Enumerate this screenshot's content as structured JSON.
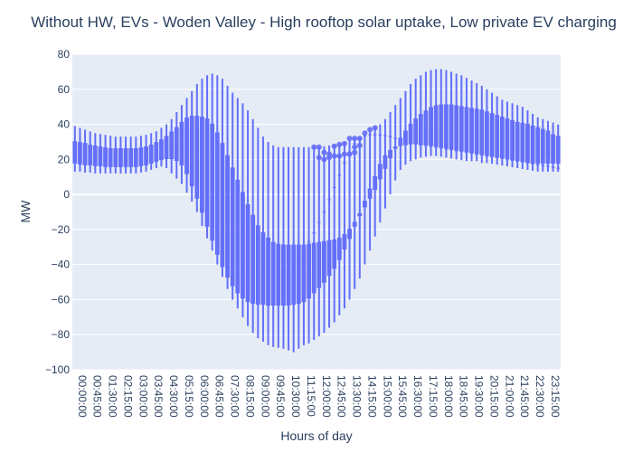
{
  "chart_data": {
    "type": "box",
    "title": "Without HW, EVs - Woden Valley - High rooftop solar uptake, Low private EV charging",
    "xlabel": "Hours of day",
    "ylabel": "MW",
    "ylim": [
      -100,
      80
    ],
    "yticks": [
      80,
      60,
      40,
      20,
      0,
      -20,
      -40,
      -60,
      -80,
      -100
    ],
    "ytick_labels": [
      "80",
      "60",
      "40",
      "20",
      "0",
      "−20",
      "−40",
      "−60",
      "−80",
      "−100"
    ],
    "xtick_labels": [
      "00:00:00",
      "00:45:00",
      "01:30:00",
      "02:15:00",
      "03:00:00",
      "03:45:00",
      "04:30:00",
      "05:15:00",
      "06:00:00",
      "06:45:00",
      "07:30:00",
      "08:15:00",
      "09:00:00",
      "09:45:00",
      "10:30:00",
      "11:15:00",
      "12:00:00",
      "12:45:00",
      "13:30:00",
      "14:15:00",
      "15:00:00",
      "15:45:00",
      "16:30:00",
      "17:15:00",
      "18:00:00",
      "18:45:00",
      "19:30:00",
      "20:15:00",
      "21:00:00",
      "21:45:00",
      "22:30:00",
      "23:15:00"
    ],
    "interval_minutes": 15,
    "color": "#636efa",
    "plot_background": "#e5ecf6",
    "grid": true,
    "series": [
      {
        "x_start": "00:00:00",
        "x_step_minutes": 15,
        "min": [
          13,
          13,
          12.5,
          12.5,
          12,
          12,
          12,
          12,
          12,
          12,
          12,
          12,
          12,
          12.5,
          13,
          14,
          15,
          16,
          15,
          12,
          9,
          6,
          1,
          -4,
          -10,
          -18,
          -25,
          -32,
          -40,
          -47,
          -54,
          -60,
          -65,
          -70,
          -75,
          -79,
          -82,
          -84,
          -86,
          -87,
          -87.5,
          -88,
          -89,
          -90,
          -88,
          -86,
          -85,
          -83,
          -81,
          -79,
          -76,
          -73,
          -69,
          -65,
          -60,
          -54,
          -48,
          -40,
          -32,
          -24,
          -16,
          -8,
          0,
          8,
          14,
          17,
          19,
          20,
          21,
          21.5,
          22,
          22,
          21.5,
          21,
          20.5,
          20,
          19.5,
          19,
          19,
          19,
          18,
          18,
          17.5,
          17,
          16.5,
          16,
          15.5,
          15,
          14.5,
          14,
          13.5,
          13,
          13,
          13,
          13,
          13
        ],
        "q1": [
          18,
          17.5,
          17,
          17,
          16.5,
          16.5,
          16,
          16,
          16,
          16,
          16,
          16,
          16,
          16.5,
          17,
          18,
          19,
          20,
          20.5,
          20.5,
          19.5,
          17,
          12,
          5,
          -2,
          -10,
          -18,
          -26,
          -34,
          -41,
          -47,
          -52,
          -56,
          -59,
          -61,
          -62,
          -62.5,
          -62.5,
          -63,
          -63,
          -63,
          -63,
          -63,
          -62.5,
          -62,
          -61,
          -59,
          -56,
          -53,
          -50,
          -46,
          -42,
          -37,
          -31,
          -25,
          -18,
          -11,
          -4,
          3,
          10,
          17,
          22,
          25,
          27,
          28,
          28.5,
          29,
          29,
          28.5,
          28.5,
          28,
          27.5,
          27,
          26.5,
          26,
          25.5,
          25,
          24.5,
          24,
          23.5,
          23,
          22.5,
          22,
          21.5,
          21,
          20.5,
          20,
          19.5,
          19,
          18.5,
          18,
          18,
          18,
          18,
          18,
          18
        ],
        "median": [
          22.5,
          22,
          21.5,
          21,
          20.5,
          20.5,
          20,
          20,
          20,
          20,
          20,
          20,
          20,
          20.5,
          21,
          22,
          23,
          24.5,
          26,
          27,
          27.5,
          26,
          23,
          17,
          10,
          3,
          -5,
          -13,
          -20,
          -27,
          -33,
          -38,
          -42,
          -44.5,
          -46,
          -46.5,
          -47,
          -47,
          -46.5,
          -46,
          -45,
          -44,
          -42,
          -39,
          -36,
          -32,
          -27,
          -22,
          -16,
          -10,
          -3,
          4,
          11,
          18,
          24,
          29,
          32,
          33.5,
          34,
          34,
          34,
          33.5,
          33,
          32,
          31,
          30,
          29.5,
          29,
          28.5,
          28,
          27.5,
          27,
          26.5,
          26,
          25.5,
          25,
          24.5,
          24,
          23.5,
          23,
          22.5,
          22,
          21.5,
          21,
          20.5,
          20,
          19.5,
          19,
          18.5,
          18,
          17.5,
          17,
          16.5,
          16,
          15.5,
          15
        ],
        "q3": [
          30,
          29.5,
          29,
          28,
          27.5,
          27,
          26.5,
          26,
          26,
          26,
          26,
          26,
          26,
          26.5,
          27,
          28,
          29.5,
          31,
          33,
          35.5,
          38,
          41,
          43.5,
          44.5,
          44.5,
          44,
          43,
          40,
          35,
          29,
          22,
          15,
          8,
          1,
          -6,
          -12,
          -18,
          -22,
          -25,
          -27.5,
          -28.5,
          -29,
          -29,
          -29,
          -29,
          -29,
          -28.5,
          -28,
          -27.5,
          -27,
          -26.5,
          -26,
          -25,
          -23,
          -20,
          -16,
          -12,
          -7,
          -2,
          3,
          9,
          15,
          21,
          27,
          32,
          36,
          40,
          43,
          45.5,
          47.5,
          49.5,
          50.5,
          51,
          51,
          51,
          50.5,
          50,
          49.5,
          49,
          48.5,
          48,
          47,
          46,
          45,
          44,
          43,
          42,
          41,
          40.5,
          40,
          39,
          38,
          37,
          36,
          34,
          33
        ],
        "max": [
          39,
          38,
          37,
          36,
          35,
          34.5,
          34,
          33.5,
          33,
          33,
          33,
          33,
          33,
          33.5,
          34,
          35,
          36,
          38,
          40,
          43,
          47,
          51,
          55,
          59,
          63,
          66,
          68,
          69,
          68,
          66,
          62,
          58,
          55,
          52,
          48,
          43,
          38,
          33,
          30,
          28,
          27,
          27,
          27,
          27,
          27,
          27,
          27,
          27,
          27,
          27.5,
          28,
          28.5,
          29,
          30,
          31,
          32,
          33,
          34,
          36,
          38,
          40,
          43,
          47,
          51,
          55,
          59,
          63,
          66,
          68,
          70,
          71,
          71.5,
          71.5,
          71,
          70,
          69,
          68,
          66.5,
          65,
          63.5,
          62,
          60,
          58,
          56,
          54,
          53,
          52,
          51,
          50,
          48,
          46,
          44,
          43,
          42,
          41,
          40
        ],
        "outliers": [
          {
            "x": "11:45:00",
            "y": 27
          },
          {
            "x": "12:00:00",
            "y": 27
          },
          {
            "x": "12:00:00",
            "y": 21
          },
          {
            "x": "12:15:00",
            "y": 24
          },
          {
            "x": "12:15:00",
            "y": 20
          },
          {
            "x": "12:30:00",
            "y": 23
          },
          {
            "x": "12:30:00",
            "y": 21
          },
          {
            "x": "12:45:00",
            "y": 27.5
          },
          {
            "x": "12:45:00",
            "y": 22
          },
          {
            "x": "13:00:00",
            "y": 28.5
          },
          {
            "x": "13:00:00",
            "y": 22
          },
          {
            "x": "13:15:00",
            "y": 29
          },
          {
            "x": "13:15:00",
            "y": 23
          },
          {
            "x": "13:30:00",
            "y": 32
          },
          {
            "x": "13:30:00",
            "y": 23
          },
          {
            "x": "13:45:00",
            "y": 32
          },
          {
            "x": "13:45:00",
            "y": 27
          },
          {
            "x": "13:45:00",
            "y": 24
          },
          {
            "x": "14:00:00",
            "y": 32
          },
          {
            "x": "14:00:00",
            "y": 28
          },
          {
            "x": "14:15:00",
            "y": 35
          },
          {
            "x": "14:30:00",
            "y": 37
          },
          {
            "x": "14:45:00",
            "y": 38
          }
        ]
      }
    ]
  }
}
